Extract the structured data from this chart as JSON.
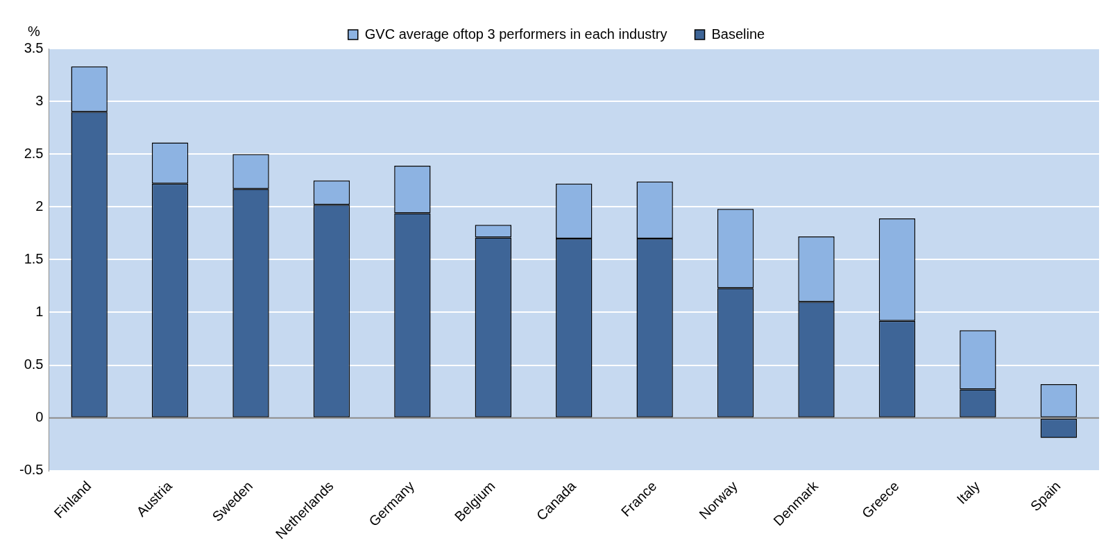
{
  "chart_data": {
    "type": "bar",
    "stacked": true,
    "ylabel": "%",
    "categories": [
      "Finland",
      "Austria",
      "Sweden",
      "Netherlands",
      "Germany",
      "Belgium",
      "Canada",
      "France",
      "Norway",
      "Denmark",
      "Greece",
      "Italy",
      "Spain"
    ],
    "series": [
      {
        "name": "Baseline",
        "color": "#3e6597",
        "values": [
          2.9,
          2.22,
          2.17,
          2.02,
          1.94,
          1.71,
          1.7,
          1.7,
          1.23,
          1.1,
          0.92,
          0.27,
          -0.19
        ]
      },
      {
        "name": "GVC average oftop 3 performers in each industry",
        "color": "#8db3e2",
        "values": [
          0.43,
          0.39,
          0.33,
          0.23,
          0.45,
          0.12,
          0.52,
          0.54,
          0.75,
          0.62,
          0.97,
          0.56,
          0.32
        ]
      }
    ],
    "ylim": [
      -0.5,
      3.5
    ],
    "yticks": [
      -0.5,
      0,
      0.5,
      1,
      1.5,
      2,
      2.5,
      3,
      3.5
    ],
    "grid": "y",
    "legend": "top"
  }
}
